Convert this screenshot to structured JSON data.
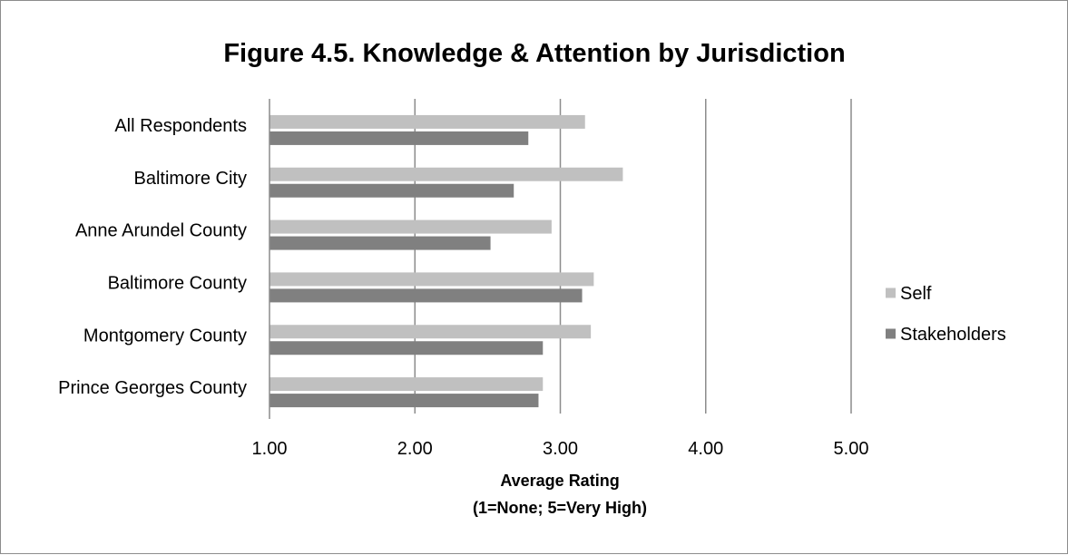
{
  "chart_data": {
    "type": "bar",
    "orientation": "horizontal",
    "title": "Figure 4.5. Knowledge & Attention by Jurisdiction",
    "xlabel": "Average Rating",
    "xlabel_note": "(1=None; 5=Very High)",
    "ylabel": "",
    "xlim": [
      1,
      5
    ],
    "x_ticks": [
      "1.00",
      "2.00",
      "3.00",
      "4.00",
      "5.00"
    ],
    "x_tick_values": [
      1,
      2,
      3,
      4,
      5
    ],
    "grid": true,
    "legend_position": "right",
    "categories": [
      "All Respondents",
      "Baltimore City",
      "Anne Arundel County",
      "Baltimore County",
      "Montgomery County",
      "Prince Georges County"
    ],
    "series": [
      {
        "name": "Self",
        "color": "#c0c0c0",
        "values": [
          3.17,
          3.43,
          2.94,
          3.23,
          3.21,
          2.88
        ]
      },
      {
        "name": "Stakeholders",
        "color": "#808080",
        "values": [
          2.78,
          2.68,
          2.52,
          3.15,
          2.88,
          2.85
        ]
      }
    ]
  }
}
